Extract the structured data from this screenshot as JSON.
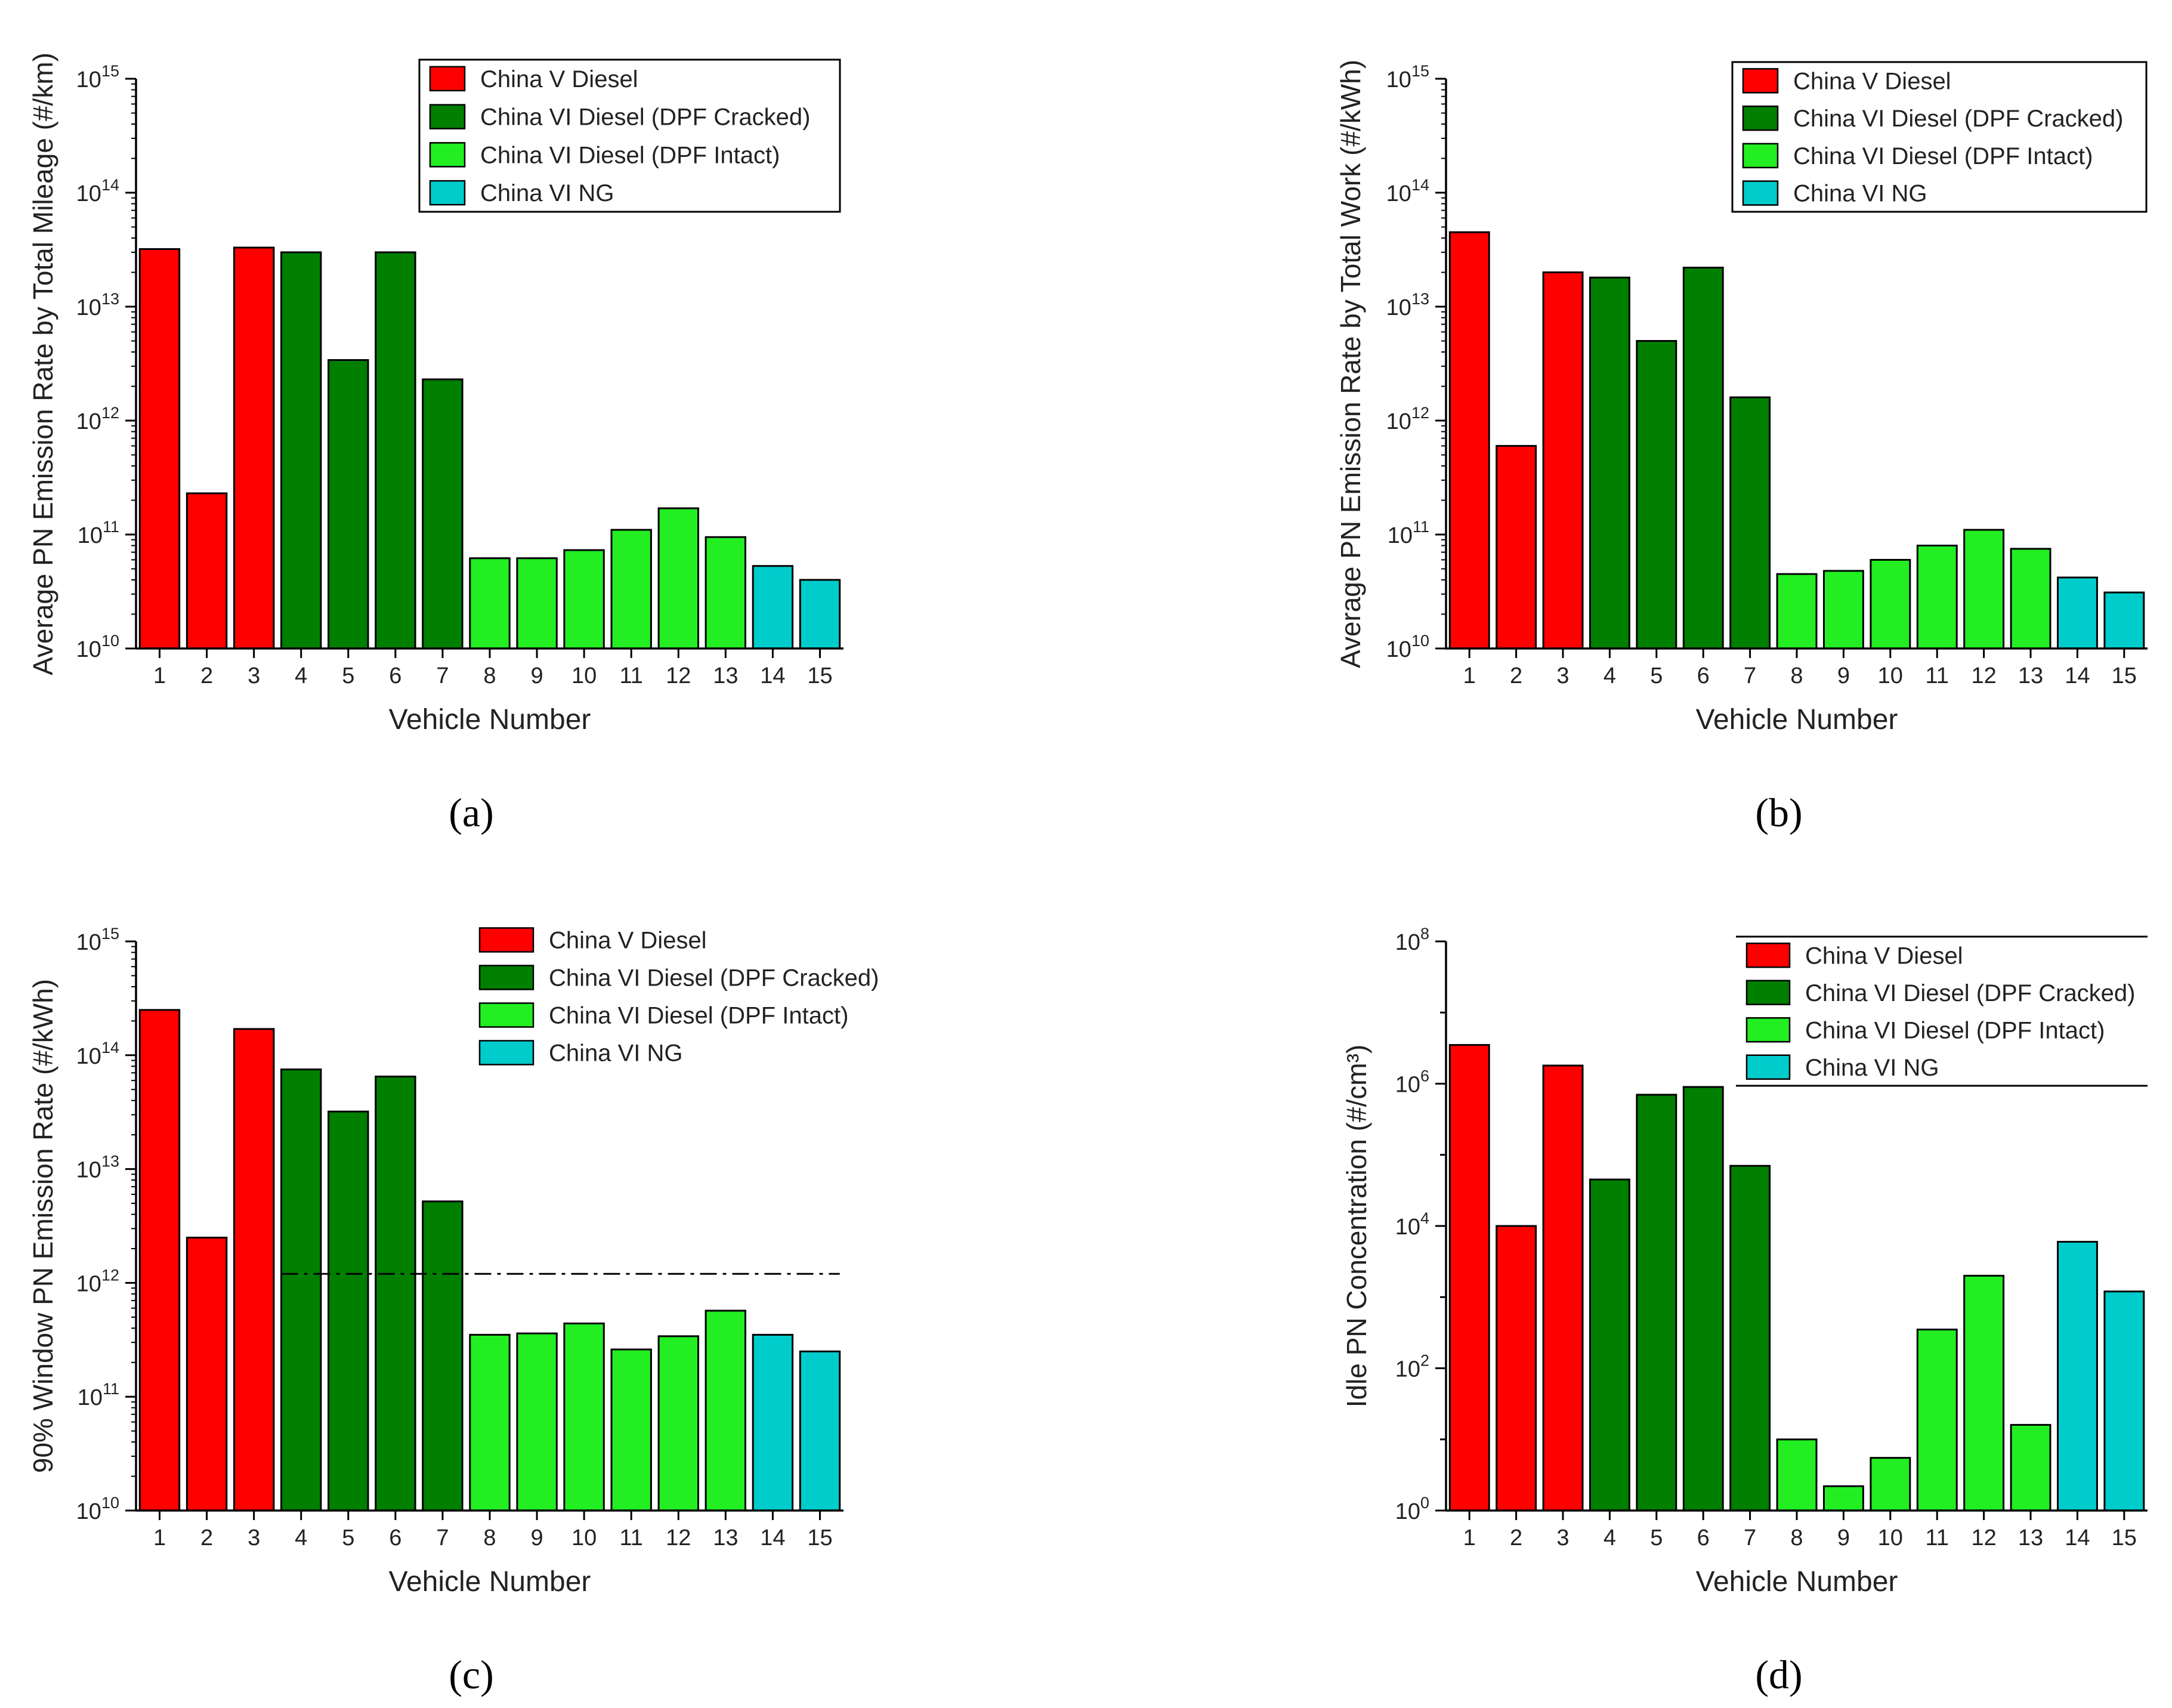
{
  "series_styles": [
    {
      "name": "China V Diesel",
      "color": "#FF0000"
    },
    {
      "name": "China VI Diesel (DPF Cracked)",
      "color": "#007F00"
    },
    {
      "name": "China VI Diesel (DPF Intact)",
      "color": "#22EE22"
    },
    {
      "name": "China VI NG",
      "color": "#00CCCC"
    }
  ],
  "vehicle_series": [
    0,
    0,
    0,
    1,
    1,
    1,
    1,
    2,
    2,
    2,
    2,
    2,
    2,
    3,
    3
  ],
  "chart_data": [
    {
      "type": "bar",
      "panel_label": "(a)",
      "xlabel": "Vehicle Number",
      "ylabel": "Average PN Emission Rate by Total Mileage (#/km)",
      "yscale": "log",
      "ylim": [
        10000000000.0,
        1000000000000000.0
      ],
      "ytick_exponents": [
        10,
        11,
        12,
        13,
        14,
        15
      ],
      "categories": [
        "1",
        "2",
        "3",
        "4",
        "5",
        "6",
        "7",
        "8",
        "9",
        "10",
        "11",
        "12",
        "13",
        "14",
        "15"
      ],
      "values": [
        32000000000000.0,
        230000000000.0,
        33000000000000.0,
        30000000000000.0,
        3400000000000.0,
        30000000000000.0,
        2300000000000.0,
        62000000000.0,
        62000000000.0,
        73000000000.0,
        110000000000.0,
        170000000000.0,
        95000000000.0,
        53000000000.0,
        40000000000.0
      ],
      "legend": "top-right"
    },
    {
      "type": "bar",
      "panel_label": "(b)",
      "xlabel": "Vehicle Number",
      "ylabel": "Average PN Emission Rate by Total Work (#/kWh)",
      "yscale": "log",
      "ylim": [
        10000000000.0,
        1000000000000000.0
      ],
      "ytick_exponents": [
        10,
        11,
        12,
        13,
        14,
        15
      ],
      "categories": [
        "1",
        "2",
        "3",
        "4",
        "5",
        "6",
        "7",
        "8",
        "9",
        "10",
        "11",
        "12",
        "13",
        "14",
        "15"
      ],
      "values": [
        45000000000000.0,
        600000000000.0,
        20000000000000.0,
        18000000000000.0,
        5000000000000.0,
        22000000000000.0,
        1600000000000.0,
        45000000000.0,
        48000000000.0,
        60000000000.0,
        80000000000.0,
        110000000000.0,
        75000000000.0,
        42000000000.0,
        31000000000.0
      ],
      "legend": "top-right"
    },
    {
      "type": "bar",
      "panel_label": "(c)",
      "xlabel": "Vehicle Number",
      "ylabel": "90% Window PN Emission Rate (#/kWh)",
      "yscale": "log",
      "ylim": [
        10000000000.0,
        1000000000000000.0
      ],
      "ytick_exponents": [
        10,
        11,
        12,
        13,
        14,
        15
      ],
      "categories": [
        "1",
        "2",
        "3",
        "4",
        "5",
        "6",
        "7",
        "8",
        "9",
        "10",
        "11",
        "12",
        "13",
        "14",
        "15"
      ],
      "values": [
        250000000000000.0,
        2500000000000.0,
        170000000000000.0,
        75000000000000.0,
        32000000000000.0,
        65000000000000.0,
        5200000000000.0,
        350000000000.0,
        360000000000.0,
        440000000000.0,
        260000000000.0,
        340000000000.0,
        570000000000.0,
        350000000000.0,
        250000000000.0
      ],
      "reference_line": {
        "value": 1200000000000.0,
        "from_category": "4",
        "to_category": "15",
        "style": "dash-dot"
      },
      "legend": "top-right"
    },
    {
      "type": "bar",
      "panel_label": "(d)",
      "xlabel": "Vehicle Number",
      "ylabel": "Idle PN Concentration (#/cm³)",
      "yscale": "log",
      "ylim": [
        1,
        100000000.0
      ],
      "ytick_exponents": [
        0,
        2,
        4,
        6,
        8
      ],
      "categories": [
        "1",
        "2",
        "3",
        "4",
        "5",
        "6",
        "7",
        "8",
        "9",
        "10",
        "11",
        "12",
        "13",
        "14",
        "15"
      ],
      "values": [
        3500000.0,
        10000.0,
        1800000.0,
        45000.0,
        700000.0,
        900000.0,
        70000.0,
        10,
        2.2,
        5.5,
        350,
        2000,
        16,
        6000,
        1200
      ],
      "legend": "top-right"
    }
  ]
}
